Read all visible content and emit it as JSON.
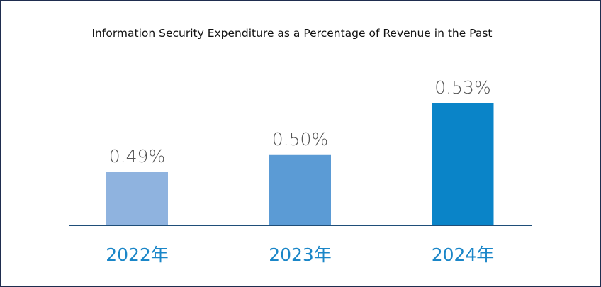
{
  "chart_data": {
    "type": "bar",
    "title": "Information Security Expenditure as a Percentage of Revenue in the Past",
    "xlabel": "",
    "ylabel": "",
    "categories": [
      "2022年",
      "2023年",
      "2024年"
    ],
    "values": [
      0.49,
      0.5,
      0.53
    ],
    "value_labels": [
      "0.49%",
      "0.50%",
      "0.53%"
    ],
    "unit": "%",
    "bar_colors": [
      "#8fb3df",
      "#5b9bd5",
      "#0a84c8"
    ],
    "axis_color": "#1f4e79",
    "grid": false,
    "legend": "none"
  }
}
